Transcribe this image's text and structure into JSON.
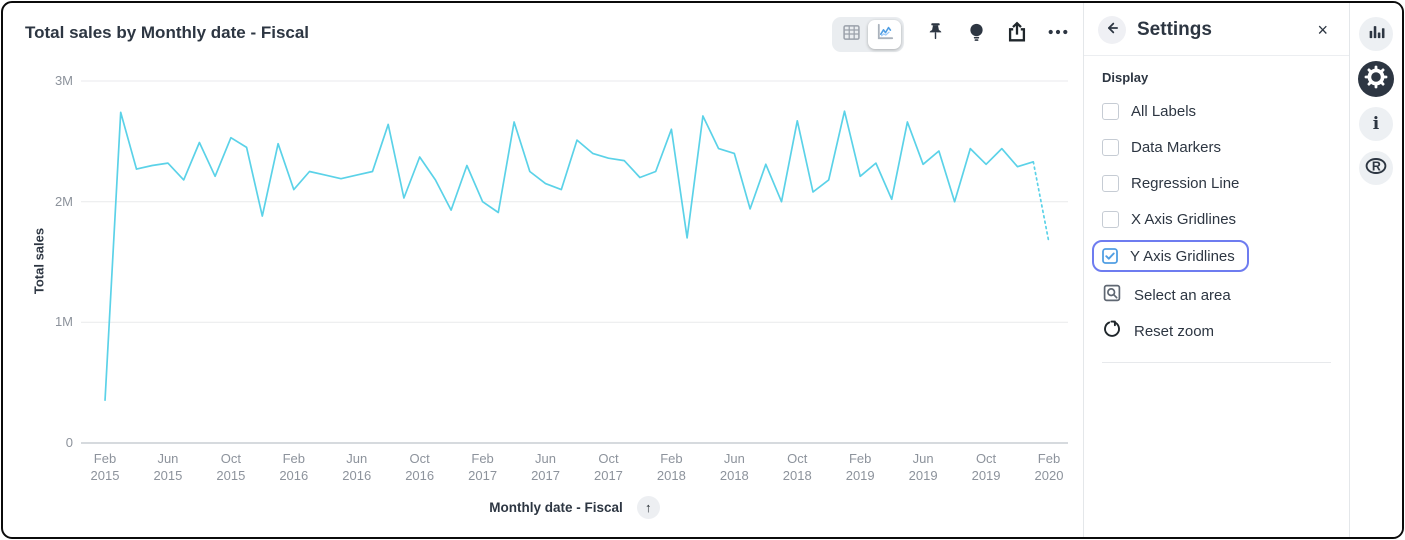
{
  "header": {
    "title": "Total sales by Monthly date - Fiscal"
  },
  "toolbar": {
    "viz_toggle": {
      "options": [
        "table",
        "chart"
      ],
      "selected": "chart"
    },
    "icons": [
      "pin",
      "lightbulb",
      "share",
      "more-ellipsis"
    ]
  },
  "glyphs": {
    "up_arrow": "↑",
    "close": "×",
    "info": "i",
    "r_logo": "R"
  },
  "chart_data": {
    "type": "line",
    "title": "Total sales by Monthly date - Fiscal",
    "xlabel": "Monthly date - Fiscal",
    "ylabel": "Total sales",
    "legend": "none",
    "gridlines": {
      "x": false,
      "y": true
    },
    "line_color": "#5bd2e8",
    "ylim": [
      0,
      3
    ],
    "y_ticks": [
      {
        "value": 0,
        "label": "0"
      },
      {
        "value": 1,
        "label": "1M"
      },
      {
        "value": 2,
        "label": "2M"
      },
      {
        "value": 3,
        "label": "3M"
      }
    ],
    "x_tick_every": 4,
    "dashed_from_index": 59,
    "x": [
      "Feb 2015",
      "Mar 2015",
      "Apr 2015",
      "May 2015",
      "Jun 2015",
      "Jul 2015",
      "Aug 2015",
      "Sep 2015",
      "Oct 2015",
      "Nov 2015",
      "Dec 2015",
      "Jan 2016",
      "Feb 2016",
      "Mar 2016",
      "Apr 2016",
      "May 2016",
      "Jun 2016",
      "Jul 2016",
      "Aug 2016",
      "Sep 2016",
      "Oct 2016",
      "Nov 2016",
      "Dec 2016",
      "Jan 2017",
      "Feb 2017",
      "Mar 2017",
      "Apr 2017",
      "May 2017",
      "Jun 2017",
      "Jul 2017",
      "Aug 2017",
      "Sep 2017",
      "Oct 2017",
      "Nov 2017",
      "Dec 2017",
      "Jan 2018",
      "Feb 2018",
      "Mar 2018",
      "Apr 2018",
      "May 2018",
      "Jun 2018",
      "Jul 2018",
      "Aug 2018",
      "Sep 2018",
      "Oct 2018",
      "Nov 2018",
      "Dec 2018",
      "Jan 2019",
      "Feb 2019",
      "Mar 2019",
      "Apr 2019",
      "May 2019",
      "Jun 2019",
      "Jul 2019",
      "Aug 2019",
      "Sep 2019",
      "Oct 2019",
      "Nov 2019",
      "Dec 2019",
      "Jan 2020",
      "Feb 2020"
    ],
    "values_millions": [
      0.35,
      2.74,
      2.27,
      2.3,
      2.32,
      2.18,
      2.49,
      2.21,
      2.53,
      2.45,
      1.88,
      2.48,
      2.1,
      2.25,
      2.22,
      2.19,
      2.22,
      2.25,
      2.64,
      2.03,
      2.37,
      2.18,
      1.93,
      2.3,
      2.0,
      1.91,
      2.66,
      2.25,
      2.15,
      2.1,
      2.51,
      2.4,
      2.36,
      2.34,
      2.2,
      2.25,
      2.6,
      1.7,
      2.71,
      2.44,
      2.4,
      1.94,
      2.31,
      2.0,
      2.67,
      2.08,
      2.18,
      2.75,
      2.21,
      2.32,
      2.02,
      2.66,
      2.31,
      2.42,
      2.0,
      2.44,
      2.31,
      2.44,
      2.29,
      2.33,
      1.66
    ]
  },
  "settings_panel": {
    "title": "Settings",
    "section_title": "Display",
    "checkboxes": [
      {
        "label": "All Labels",
        "checked": false
      },
      {
        "label": "Data Markers",
        "checked": false
      },
      {
        "label": "Regression Line",
        "checked": false
      },
      {
        "label": "X Axis Gridlines",
        "checked": false
      },
      {
        "label": "Y Axis Gridlines",
        "checked": true,
        "focused": true
      }
    ],
    "actions": [
      {
        "label": "Select an area",
        "icon": "select-area"
      },
      {
        "label": "Reset zoom",
        "icon": "reset-zoom"
      }
    ]
  },
  "rail": {
    "icons": [
      {
        "name": "bar-chart",
        "active": false
      },
      {
        "name": "settings-gear",
        "active": true
      },
      {
        "name": "info",
        "active": false
      },
      {
        "name": "r-logo",
        "active": false
      }
    ]
  },
  "colors": {
    "accent_blue": "#509ee3",
    "line_cyan": "#5bd2e8",
    "focus_ring": "#6e7cf0",
    "text_dark": "#2d3642",
    "tick_gray": "#8d939c"
  }
}
